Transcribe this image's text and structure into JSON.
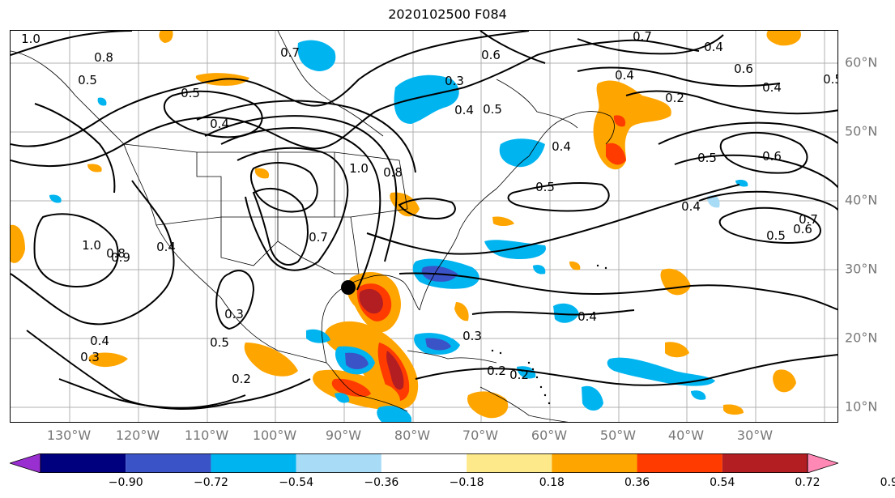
{
  "title": "2020102500 F084",
  "map": {
    "longitude_labels": [
      "130°W",
      "120°W",
      "110°W",
      "100°W",
      "90°W",
      "80°W",
      "70°W",
      "60°W",
      "50°W",
      "40°W",
      "30°W"
    ],
    "latitude_labels": [
      "60°N",
      "50°N",
      "40°N",
      "30°N",
      "20°N",
      "10°N"
    ],
    "contour_labels": [
      "1.0",
      "0.8",
      "0.7",
      "0.5",
      "0.5",
      "0.4",
      "0.6",
      "0.7",
      "0.4",
      "0.4",
      "0.5",
      "0.3",
      "0.4",
      "0.6",
      "0.4",
      "0.5",
      "0.2",
      "1.0",
      "0.8",
      "0.4",
      "0.5",
      "0.5",
      "0.6",
      "0.4",
      "0.5",
      "0.6",
      "0.7",
      "1.0",
      "0.8",
      "0.4",
      "0.3",
      "0.4",
      "0.2",
      "0.3",
      "0.5",
      "0.4",
      "0.3",
      "0.2",
      "0.2",
      "0.9",
      "0.7"
    ],
    "storm_marker": "filled-circle"
  },
  "colorbar": {
    "tick_labels": [
      "−0.90",
      "−0.72",
      "−0.54",
      "−0.36",
      "−0.18",
      "0.18",
      "0.36",
      "0.54",
      "0.72",
      "0.90"
    ],
    "colors": [
      "#9a2fd1",
      "#00007f",
      "#3a54c8",
      "#00b4f0",
      "#a8dcf6",
      "#ffffff",
      "#fde98a",
      "#ffa500",
      "#ff3b00",
      "#b21e22",
      "#ff88b4"
    ]
  }
}
